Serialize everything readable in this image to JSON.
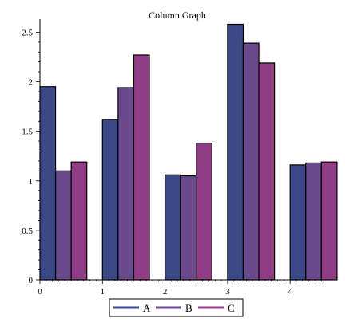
{
  "chart_data": {
    "type": "bar",
    "title": "Column Graph",
    "xlabel": "",
    "ylabel": "",
    "x_ticks": [
      "0",
      "1",
      "2",
      "3",
      "4"
    ],
    "y_ticks": [
      "0",
      "0.5",
      "1",
      "1.5",
      "2",
      "2.5"
    ],
    "xlim": [
      0,
      4.7
    ],
    "ylim": [
      0,
      2.6
    ],
    "bar_width": 0.25,
    "series": [
      {
        "name": "A",
        "color": "#3b4a86",
        "x": [
          0,
          1,
          2,
          3,
          4
        ],
        "values": [
          1.95,
          1.62,
          1.06,
          2.58,
          1.16
        ]
      },
      {
        "name": "B",
        "color": "#6a4a8c",
        "x": [
          0.25,
          1.25,
          2.25,
          3.25,
          4.25
        ],
        "values": [
          1.1,
          1.94,
          1.05,
          2.39,
          1.18
        ]
      },
      {
        "name": "C",
        "color": "#8f3d84",
        "x": [
          0.5,
          1.5,
          2.5,
          3.5,
          4.5
        ],
        "values": [
          1.19,
          2.27,
          1.38,
          2.19,
          1.19
        ]
      }
    ],
    "legend_position": "bottom"
  }
}
